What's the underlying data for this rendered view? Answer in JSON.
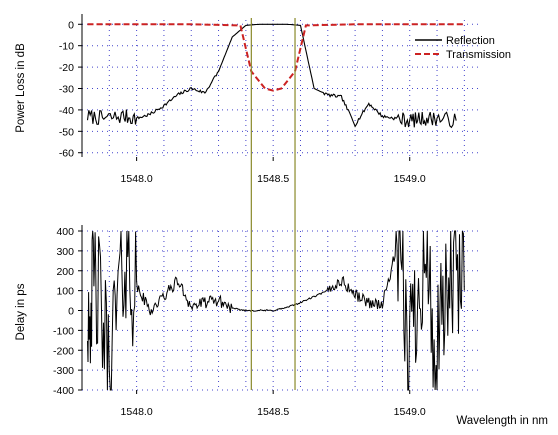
{
  "chart_data": [
    {
      "type": "line",
      "title": "",
      "xlabel": "",
      "ylabel": "Power Loss in dB",
      "xlim": [
        1547.8,
        1549.25
      ],
      "ylim": [
        -62,
        2
      ],
      "x_ticks": [
        1548.0,
        1548.5,
        1549.0
      ],
      "x_tick_labels": [
        "1548.0",
        "1548.5",
        "1549.0"
      ],
      "y_ticks": [
        0,
        -10,
        -20,
        -30,
        -40,
        -50,
        -60
      ],
      "y_tick_labels": [
        "0",
        "-10",
        "-20",
        "-30",
        "-40",
        "-50",
        "-60"
      ],
      "grid": "dotted",
      "legend_position": "top-right",
      "series": [
        {
          "name": "Reflection",
          "color": "#000000",
          "style": "solid",
          "x": [
            1547.82,
            1547.88,
            1547.95,
            1548.0,
            1548.05,
            1548.1,
            1548.15,
            1548.2,
            1548.25,
            1548.3,
            1548.35,
            1548.4,
            1548.45,
            1548.5,
            1548.55,
            1548.6,
            1548.65,
            1548.7,
            1548.75,
            1548.8,
            1548.85,
            1548.9,
            1548.95,
            1549.0,
            1549.05,
            1549.1,
            1549.17
          ],
          "y": [
            -43,
            -44,
            -43,
            -44,
            -42,
            -38,
            -33,
            -30,
            -32,
            -22,
            -6,
            -0.5,
            0,
            0,
            0,
            -0.5,
            -30,
            -33,
            -34,
            -47,
            -37,
            -43,
            -44,
            -45,
            -44,
            -44,
            -45
          ]
        },
        {
          "name": "Transmission",
          "color": "#cc2222",
          "style": "dashed",
          "x": [
            1547.82,
            1548.0,
            1548.2,
            1548.38,
            1548.42,
            1548.47,
            1548.5,
            1548.53,
            1548.58,
            1548.62,
            1548.8,
            1549.0,
            1549.2
          ],
          "y": [
            0,
            0,
            0,
            -0.5,
            -22,
            -30,
            -31,
            -30,
            -22,
            -0.5,
            0,
            0,
            0
          ]
        }
      ],
      "vertical_markers": [
        1548.42,
        1548.58
      ]
    },
    {
      "type": "line",
      "title": "",
      "xlabel": "Wavelength in nm",
      "ylabel": "Delay in ps",
      "xlim": [
        1547.8,
        1549.25
      ],
      "ylim": [
        -400,
        400
      ],
      "x_ticks": [
        1548.0,
        1548.5,
        1549.0
      ],
      "x_tick_labels": [
        "1548.0",
        "1548.5",
        "1549.0"
      ],
      "y_ticks": [
        400,
        300,
        200,
        100,
        0,
        -100,
        -200,
        -300,
        -400
      ],
      "y_tick_labels": [
        "400",
        "300",
        "200",
        "100",
        "0",
        "-100",
        "-200",
        "-300",
        "-400"
      ],
      "grid": "dotted",
      "series": [
        {
          "name": "",
          "color": "#000000",
          "style": "solid",
          "x": [
            1547.82,
            1547.85,
            1547.9,
            1547.95,
            1548.0,
            1548.05,
            1548.1,
            1548.15,
            1548.2,
            1548.25,
            1548.3,
            1548.35,
            1548.4,
            1548.45,
            1548.5,
            1548.55,
            1548.6,
            1548.65,
            1548.7,
            1548.75,
            1548.8,
            1548.85,
            1548.9,
            1548.95,
            1549.0,
            1549.05,
            1549.1,
            1549.15,
            1549.2
          ],
          "y": [
            20,
            150,
            -280,
            250,
            120,
            0,
            70,
            150,
            20,
            40,
            50,
            10,
            0,
            0,
            0,
            15,
            40,
            70,
            100,
            150,
            80,
            40,
            30,
            300,
            -200,
            350,
            -300,
            200,
            100
          ]
        }
      ],
      "vertical_markers": [
        1548.42,
        1548.58
      ]
    }
  ]
}
